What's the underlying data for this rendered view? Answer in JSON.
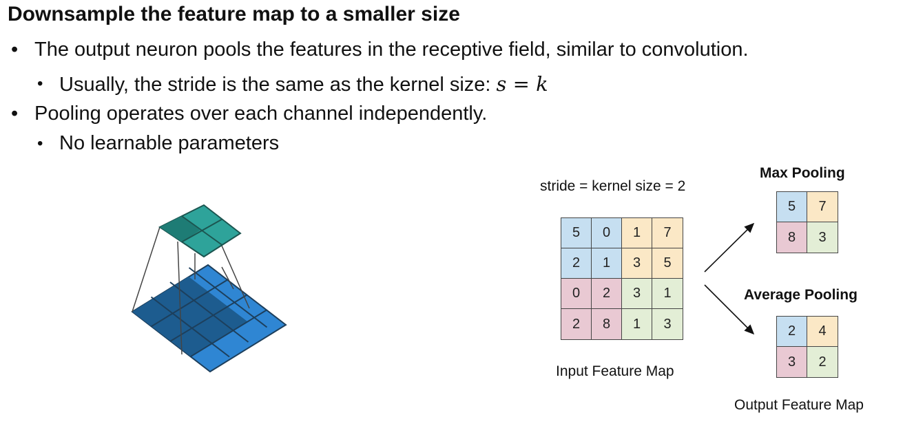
{
  "title": "Downsample the feature map to a smaller size",
  "bullets": [
    {
      "text": "The output neuron pools the features in the receptive field, similar to convolution."
    },
    {
      "text": "Usually, the stride is the same as the kernel size: ",
      "math_left": "s",
      "math_eq": "=",
      "math_right": "k"
    },
    {
      "text": "Pooling operates over each channel independently."
    },
    {
      "text": "No learnable parameters"
    }
  ],
  "diagram": {
    "stride_label": "stride = kernel size = 2",
    "input_label": "Input Feature Map",
    "output_label": "Output Feature Map",
    "max_label": "Max Pooling",
    "avg_label": "Average Pooling",
    "input_grid": [
      [
        "5",
        "0",
        "1",
        "7"
      ],
      [
        "2",
        "1",
        "3",
        "5"
      ],
      [
        "0",
        "2",
        "3",
        "1"
      ],
      [
        "2",
        "8",
        "1",
        "3"
      ]
    ],
    "max_grid": [
      [
        "5",
        "7"
      ],
      [
        "8",
        "3"
      ]
    ],
    "avg_grid": [
      [
        "2",
        "4"
      ],
      [
        "3",
        "2"
      ]
    ],
    "quadrant_colors": {
      "top_left": "#c6dff1",
      "top_right": "#fbe8c6",
      "bottom_left": "#e9c9d3",
      "bottom_right": "#e3eed6"
    }
  }
}
